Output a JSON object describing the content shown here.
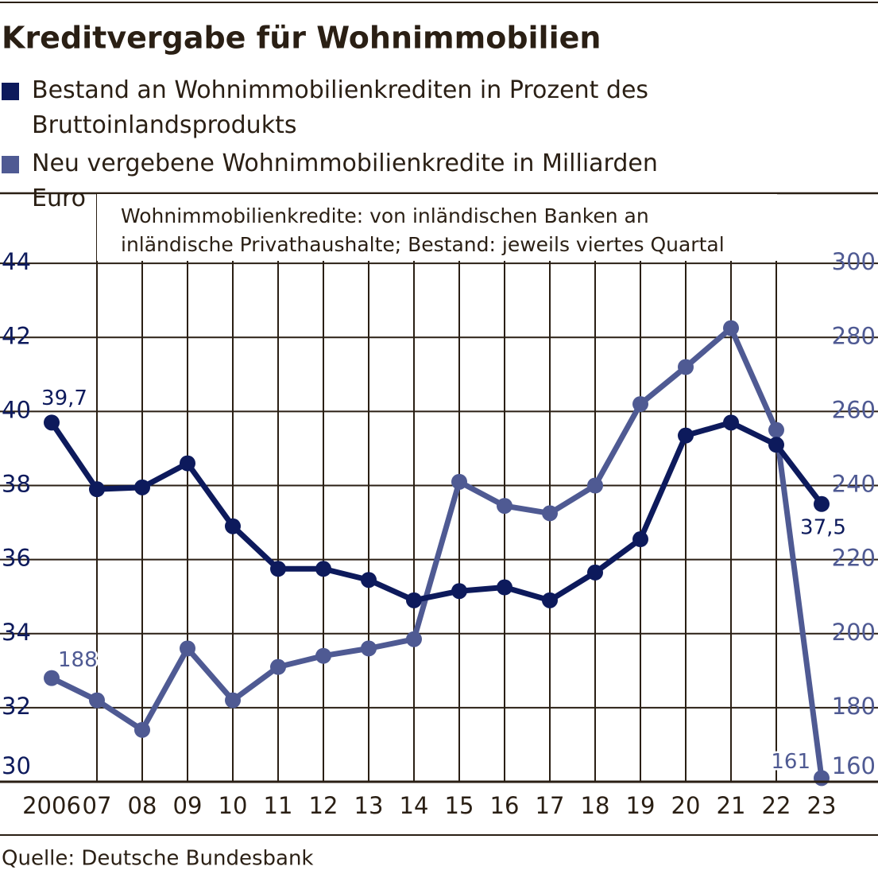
{
  "chart_data": {
    "type": "line",
    "title": "Kreditvergabe für Wohnimmobilien",
    "note": [
      "Wohnimmobilienkredite: von inländischen Banken an",
      "inländische Privathaushalte; Bestand: jeweils viertes Quartal"
    ],
    "source": "Quelle: Deutsche Bundesbank",
    "categories": [
      "2006",
      "07",
      "08",
      "09",
      "10",
      "11",
      "12",
      "13",
      "14",
      "15",
      "16",
      "17",
      "18",
      "19",
      "20",
      "21",
      "22",
      "23"
    ],
    "series": [
      {
        "name": "Bestand an Wohnimmobilienkrediten in Prozent des Bruttoinlandsprodukts",
        "color": "#0d1a5c",
        "axis": "y",
        "values": [
          39.7,
          37.9,
          37.95,
          38.6,
          36.9,
          35.75,
          35.75,
          35.45,
          34.9,
          35.15,
          35.25,
          34.9,
          35.65,
          36.55,
          39.35,
          39.7,
          39.1,
          37.5
        ],
        "value_labels": [
          "39,7",
          null,
          null,
          null,
          null,
          null,
          null,
          null,
          null,
          null,
          null,
          null,
          null,
          null,
          null,
          null,
          null,
          "37,5"
        ]
      },
      {
        "name": "Neu vergebene Wohnimmobilienkredite in Milliarden Euro",
        "color": "#4f5a93",
        "axis": "y2",
        "values": [
          188,
          182,
          174,
          196,
          182,
          191,
          194,
          196,
          198.5,
          241,
          234.5,
          232.5,
          240,
          262,
          272,
          282.5,
          255,
          161
        ],
        "value_labels": [
          "188",
          null,
          null,
          null,
          null,
          null,
          null,
          null,
          null,
          null,
          null,
          null,
          null,
          null,
          null,
          null,
          null,
          "161"
        ]
      }
    ],
    "ylim": [
      30,
      46
    ],
    "yticks": [
      30,
      32,
      34,
      36,
      38,
      40,
      42,
      44
    ],
    "y2lim": [
      160,
      320
    ],
    "y2ticks": [
      160,
      180,
      200,
      220,
      240,
      260,
      280,
      300
    ],
    "grid": true
  }
}
